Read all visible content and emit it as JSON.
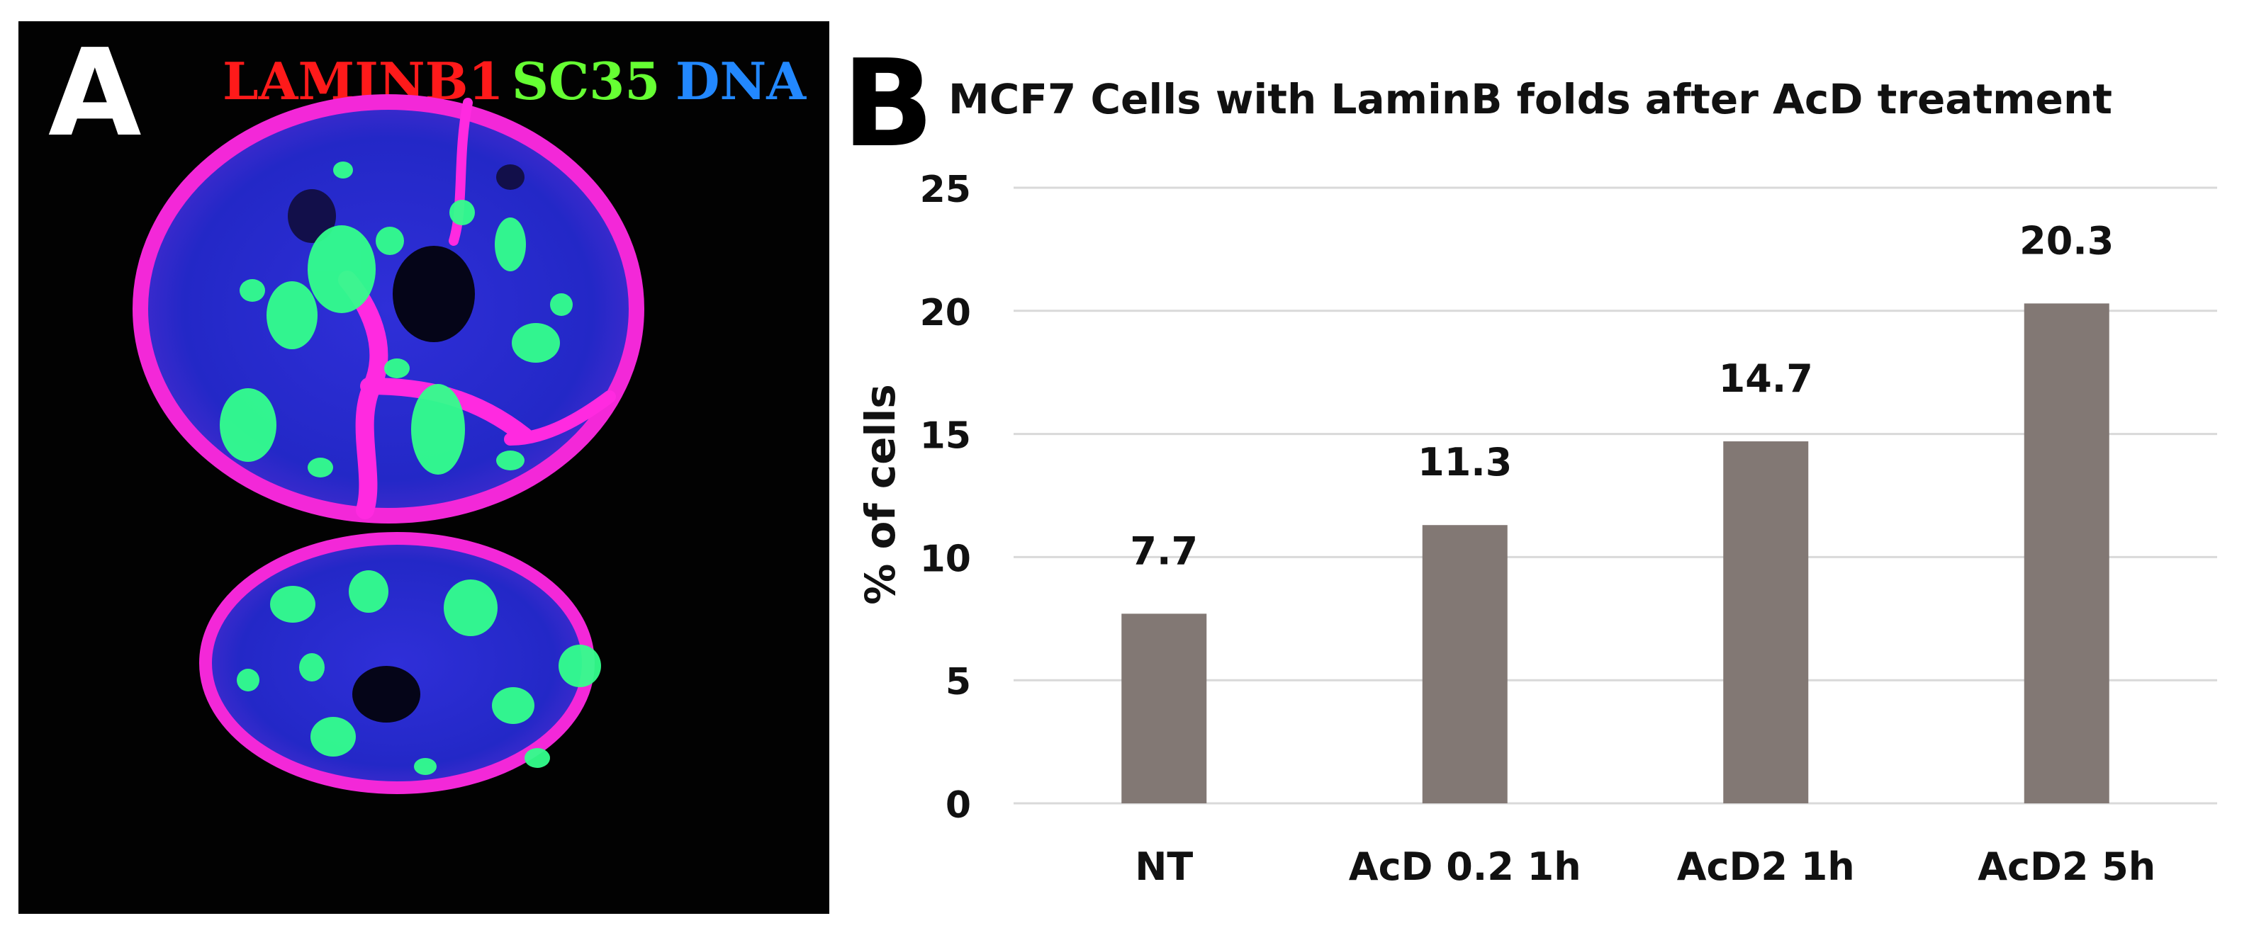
{
  "panel_a": {
    "letter": "A",
    "channels": [
      {
        "name": "LAMINB1",
        "color": "#ff1a1a"
      },
      {
        "name": "SC35",
        "color": "#66ff33"
      },
      {
        "name": "DNA",
        "color": "#2288ff"
      }
    ]
  },
  "panel_b": {
    "letter": "B"
  },
  "chart_data": {
    "type": "bar",
    "title": "MCF7 Cells with LaminB folds after AcD treatment",
    "categories": [
      "NT",
      "AcD 0.2 1h",
      "AcD2 1h",
      "AcD2 5h"
    ],
    "values": [
      7.7,
      11.3,
      14.7,
      20.3
    ],
    "value_labels": [
      "7.7",
      "11.3",
      "14.7",
      "20.3"
    ],
    "xlabel": "",
    "ylabel": "% of cells",
    "ylim": [
      0,
      25
    ],
    "yticks": [
      0,
      5,
      10,
      15,
      20,
      25
    ],
    "grid": true,
    "bar_color": "#827874",
    "grid_color": "#d9d9d9"
  }
}
